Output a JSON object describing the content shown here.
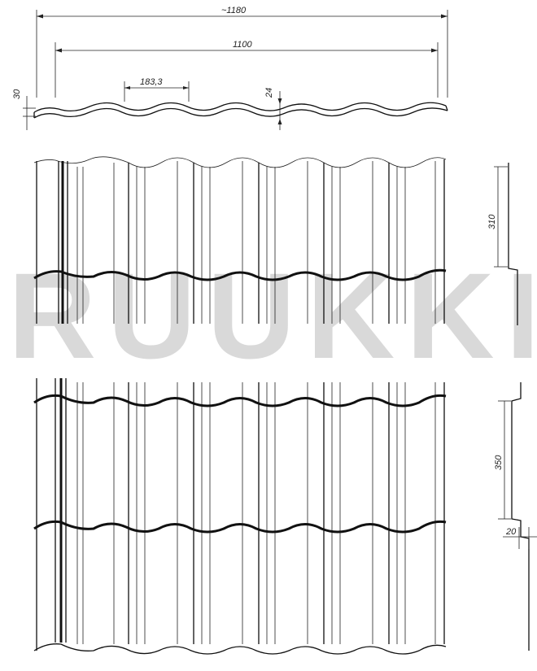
{
  "dimensions": {
    "total_width": "~1180",
    "effective_width": "1100",
    "wave_pitch": "183,3",
    "profile_height": "24",
    "edge_thickness": "30",
    "upper_step": "310",
    "module_step": "350",
    "step_height": "20"
  },
  "watermark": {
    "text": "RUUKKI"
  }
}
